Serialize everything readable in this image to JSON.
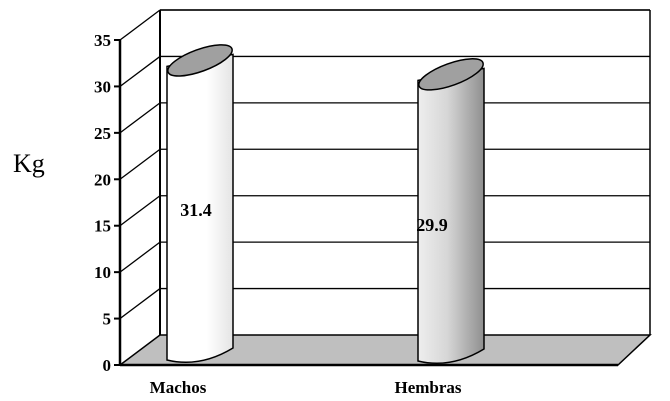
{
  "chart_data": {
    "type": "bar",
    "style": "3d-cylinder",
    "categories": [
      "Machos",
      "Hembras"
    ],
    "values": [
      31.4,
      29.9
    ],
    "value_labels": [
      "31.4",
      "29.9"
    ],
    "title": "",
    "xlabel": "",
    "ylabel": "Kg",
    "ylim": [
      0,
      35
    ],
    "yticks": [
      0,
      5,
      10,
      15,
      20,
      25,
      30,
      35
    ],
    "grid": true,
    "legend": "none",
    "colors": {
      "bar_first": "#ffffff",
      "bar_second": "#c8c8c8",
      "floor": "#bfbfbf",
      "grid": "#000000"
    }
  }
}
